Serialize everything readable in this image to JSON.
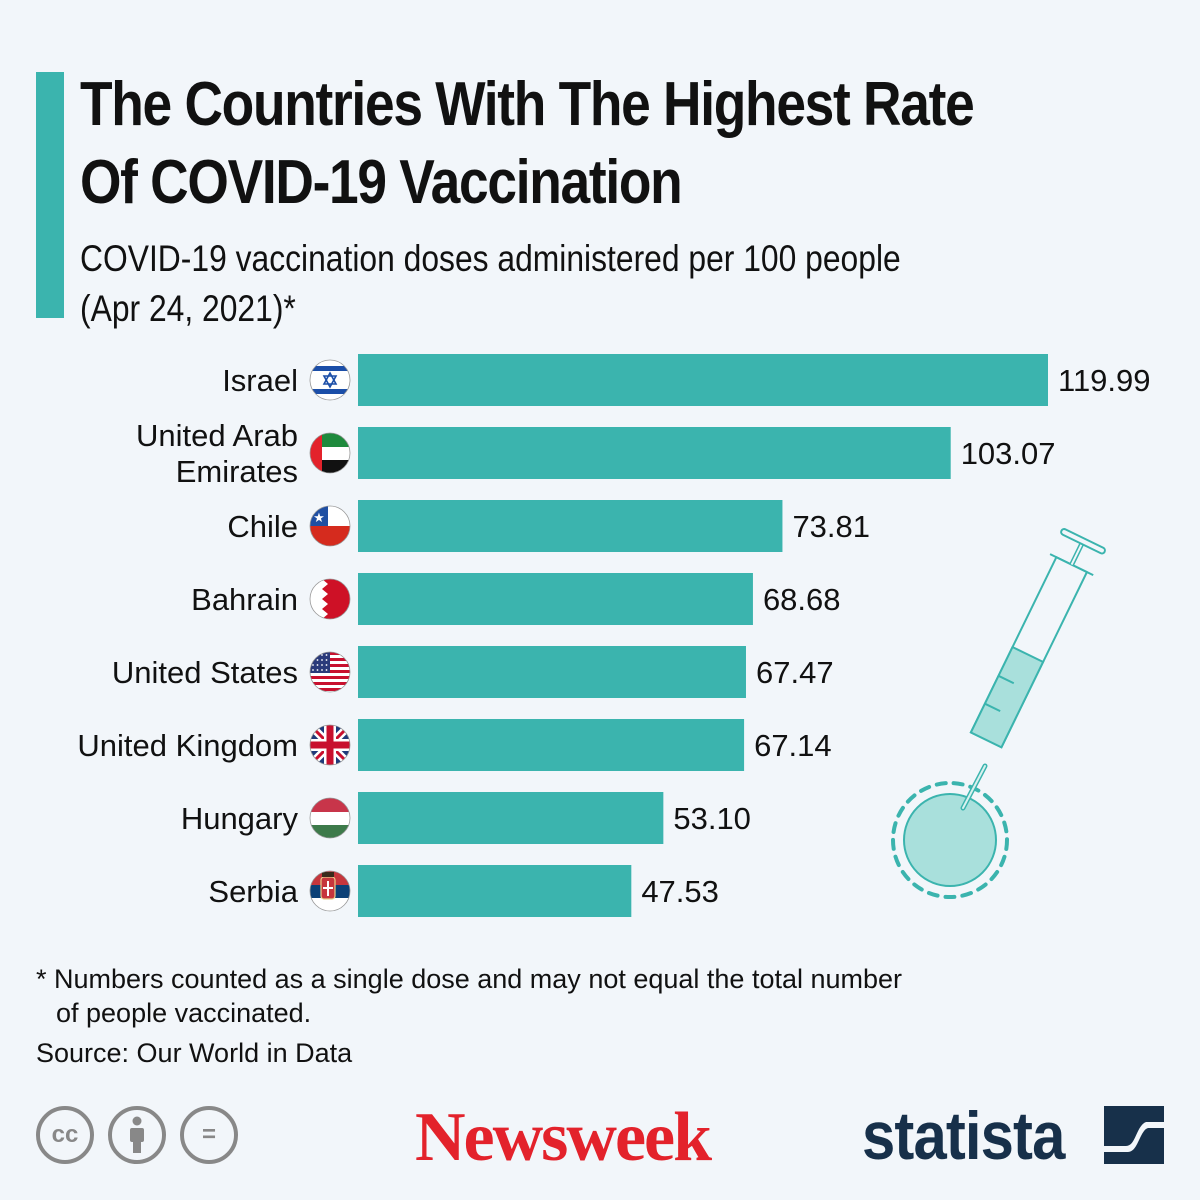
{
  "header": {
    "title_line1": "The Countries With The Highest Rate",
    "title_line2": "Of COVID-19 Vaccination",
    "subtitle_line1": "COVID-19 vaccination doses administered per 100 people",
    "subtitle_line2": "(Apr 24, 2021)*"
  },
  "colors": {
    "accent": "#3bb4ae",
    "bar": "#3bb4ae",
    "newsweek_red": "#e3222b",
    "statista_navy": "#17304a"
  },
  "chart_data": {
    "type": "bar",
    "orientation": "horizontal",
    "title": "The Countries With The Highest Rate Of COVID-19 Vaccination",
    "subtitle": "COVID-19 vaccination doses administered per 100 people (Apr 24, 2021)*",
    "xlabel": "",
    "ylabel": "",
    "xlim": [
      0,
      119.99
    ],
    "grid": false,
    "categories": [
      {
        "label_lines": [
          "Israel"
        ],
        "flag": "israel"
      },
      {
        "label_lines": [
          "United Arab",
          "Emirates"
        ],
        "flag": "uae"
      },
      {
        "label_lines": [
          "Chile"
        ],
        "flag": "chile"
      },
      {
        "label_lines": [
          "Bahrain"
        ],
        "flag": "bahrain"
      },
      {
        "label_lines": [
          "United States"
        ],
        "flag": "usa"
      },
      {
        "label_lines": [
          "United Kingdom"
        ],
        "flag": "uk"
      },
      {
        "label_lines": [
          "Hungary"
        ],
        "flag": "hungary"
      },
      {
        "label_lines": [
          "Serbia"
        ],
        "flag": "serbia"
      }
    ],
    "values": [
      119.99,
      103.07,
      73.81,
      68.68,
      67.47,
      67.14,
      53.1,
      47.53
    ],
    "value_labels": [
      "119.99",
      "103.07",
      "73.81",
      "68.68",
      "67.47",
      "67.14",
      "53.10",
      "47.53"
    ]
  },
  "footer": {
    "footnote_line1": "* Numbers counted as a single dose and may not equal the total number",
    "footnote_line2": "of people vaccinated.",
    "source": "Source: Our World in Data",
    "cc_icons": [
      "cc-icon",
      "attribution-icon",
      "no-derivatives-icon"
    ],
    "cc_label": "cc",
    "nd_label": "=",
    "newsweek_logo": "Newsweek",
    "statista_logo": "statista"
  }
}
